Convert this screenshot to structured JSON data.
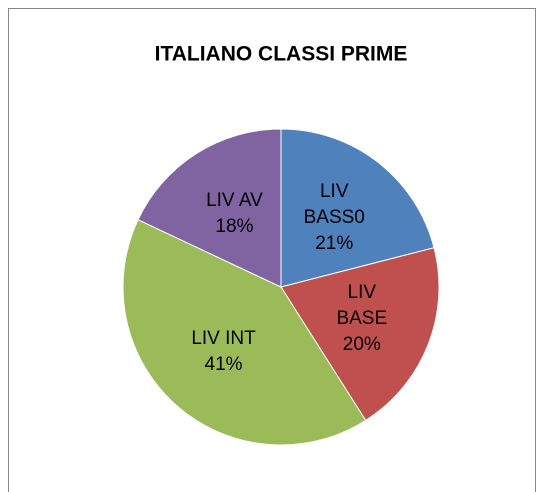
{
  "chart_data": {
    "type": "pie",
    "title": "ITALIANO CLASSI PRIME",
    "categories": [
      "LIV BASS0",
      "LIV BASE",
      "LIV INT",
      "LIV AV"
    ],
    "values": [
      21,
      20,
      41,
      18
    ],
    "value_labels": [
      "21%",
      "20%",
      "41%",
      "18%"
    ],
    "colors": [
      "#4f81bd",
      "#c0504d",
      "#9bbb59",
      "#8064a2"
    ]
  }
}
